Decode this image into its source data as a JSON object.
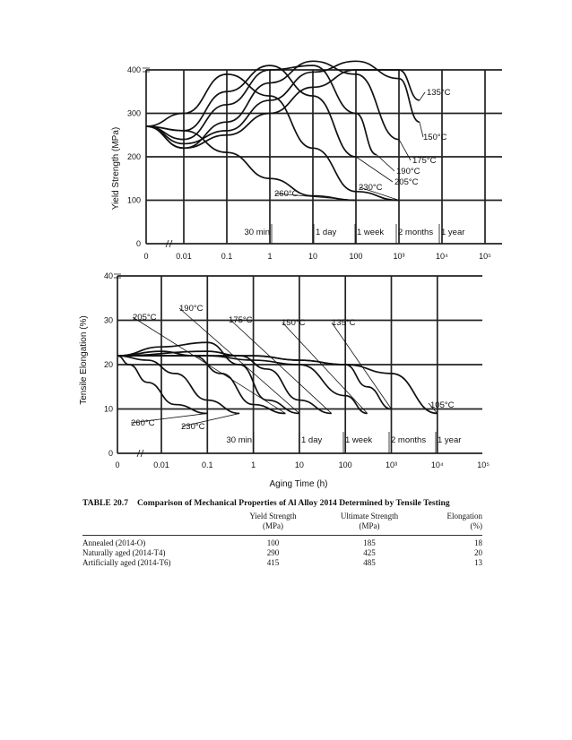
{
  "chart_data": [
    {
      "type": "line",
      "ylabel": "Yield Strength (MPa)",
      "xlabel": "",
      "xscale": "log",
      "x_ticks": [
        "0",
        "0.01",
        "0.1",
        "1",
        "10",
        "100",
        "10³",
        "10⁴",
        "10⁵"
      ],
      "y_ticks": [
        "0",
        "100",
        "200",
        "300",
        "400"
      ],
      "ylim": [
        0,
        400
      ],
      "time_markers": [
        "30 min",
        "1 day",
        "1 week",
        "2 months",
        "1 year"
      ],
      "series": [
        {
          "name": "135°C",
          "x": [
            0.001,
            0.01,
            0.1,
            1,
            10,
            100,
            1000,
            3000
          ],
          "y": [
            270,
            220,
            250,
            300,
            360,
            400,
            400,
            330
          ]
        },
        {
          "name": "150°C",
          "x": [
            0.001,
            0.01,
            0.1,
            1,
            10,
            100,
            1000,
            3000
          ],
          "y": [
            270,
            230,
            260,
            330,
            395,
            420,
            380,
            280
          ]
        },
        {
          "name": "175°C",
          "x": [
            0.001,
            0.01,
            0.1,
            1,
            10,
            100,
            1000
          ],
          "y": [
            270,
            220,
            280,
            370,
            420,
            390,
            240
          ]
        },
        {
          "name": "190°C",
          "x": [
            0.001,
            0.01,
            0.1,
            1,
            10,
            100,
            300
          ],
          "y": [
            270,
            240,
            320,
            400,
            410,
            300,
            205
          ]
        },
        {
          "name": "205°C",
          "x": [
            0.001,
            0.01,
            0.1,
            1,
            10,
            100
          ],
          "y": [
            270,
            260,
            350,
            410,
            340,
            200
          ]
        },
        {
          "name": "230°C",
          "x": [
            0.001,
            0.01,
            0.1,
            1,
            10,
            100,
            1000
          ],
          "y": [
            270,
            300,
            390,
            340,
            220,
            120,
            100
          ]
        },
        {
          "name": "260°C",
          "x": [
            0.001,
            0.01,
            0.1,
            1,
            10,
            100
          ],
          "y": [
            270,
            260,
            210,
            150,
            110,
            100
          ]
        }
      ]
    },
    {
      "type": "line",
      "ylabel": "Tensile Elongation (%)",
      "xlabel": "Aging Time (h)",
      "xscale": "log",
      "x_ticks": [
        "0",
        "0.01",
        "0.1",
        "1",
        "10",
        "100",
        "10³",
        "10⁴",
        "10⁵"
      ],
      "y_ticks": [
        "0",
        "10",
        "20",
        "30",
        "40"
      ],
      "ylim": [
        0,
        40
      ],
      "time_markers": [
        "30 min",
        "1 day",
        "1 week",
        "2 months",
        "1 year"
      ],
      "series": [
        {
          "name": "105°C",
          "x": [
            0.001,
            1,
            10,
            100,
            1000,
            10000
          ],
          "y": [
            22,
            22,
            21,
            20,
            18,
            9
          ]
        },
        {
          "name": "135°C",
          "x": [
            0.001,
            1,
            10,
            100,
            300,
            1000
          ],
          "y": [
            22,
            22,
            21,
            20,
            15,
            10
          ]
        },
        {
          "name": "150°C",
          "x": [
            0.001,
            0.1,
            1,
            10,
            100,
            300
          ],
          "y": [
            22,
            22,
            21,
            20,
            13,
            9
          ]
        },
        {
          "name": "175°C",
          "x": [
            0.001,
            0.1,
            0.5,
            2,
            10,
            50
          ],
          "y": [
            22,
            23,
            22,
            19,
            12,
            9
          ]
        },
        {
          "name": "190°C",
          "x": [
            0.001,
            0.01,
            0.1,
            0.5,
            2,
            10
          ],
          "y": [
            22,
            24,
            25,
            20,
            12,
            9
          ]
        },
        {
          "name": "205°C",
          "x": [
            0.001,
            0.01,
            0.05,
            0.2,
            1,
            5
          ],
          "y": [
            22,
            23,
            22,
            18,
            11,
            9
          ]
        },
        {
          "name": "230°C",
          "x": [
            0.001,
            0.005,
            0.02,
            0.1,
            0.5
          ],
          "y": [
            22,
            21,
            18,
            12,
            9
          ]
        },
        {
          "name": "260°C",
          "x": [
            0.001,
            0.002,
            0.005,
            0.02,
            0.1
          ],
          "y": [
            22,
            20,
            16,
            11,
            9
          ]
        }
      ]
    }
  ],
  "table": {
    "label": "TABLE 20.7",
    "title": "Comparison of Mechanical Properties of Al Alloy 2014 Determined by Tensile Testing",
    "headers": [
      {
        "name": "Yield Strength",
        "unit": "(MPa)"
      },
      {
        "name": "Ultimate Strength",
        "unit": "(MPa)"
      },
      {
        "name": "Elongation",
        "unit": "(%)"
      }
    ],
    "rows": [
      {
        "label": "Annealed (2014-O)",
        "values": [
          "100",
          "185",
          "18"
        ]
      },
      {
        "label": "Naturally aged (2014-T4)",
        "values": [
          "290",
          "425",
          "20"
        ]
      },
      {
        "label": "Artificially aged (2014-T6)",
        "values": [
          "415",
          "485",
          "13"
        ]
      }
    ]
  }
}
